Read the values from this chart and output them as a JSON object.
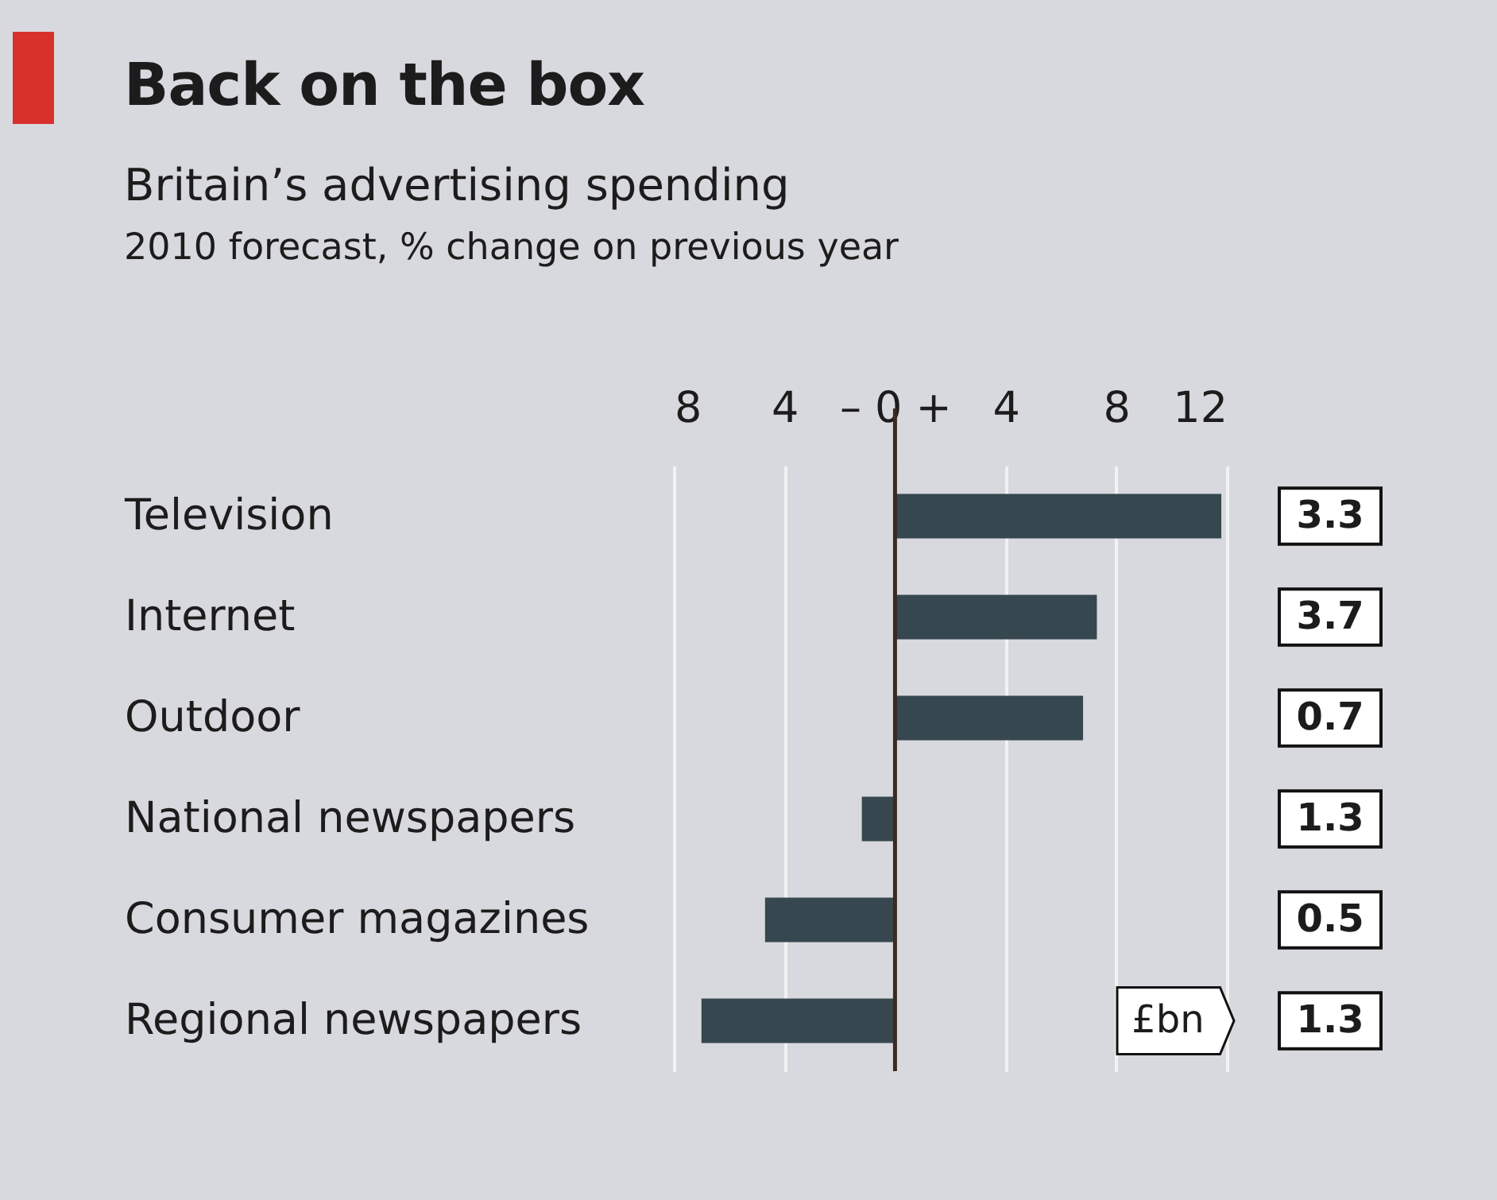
{
  "chart_data": {
    "type": "bar",
    "orientation": "horizontal",
    "title": "Back on the box",
    "subtitle": "Britain’s advertising spending",
    "xlabel": "2010 forecast, % change on previous year",
    "categories": [
      "Television",
      "Internet",
      "Outdoor",
      "National newspapers",
      "Consumer magazines",
      "Regional newspapers"
    ],
    "values": [
      11.8,
      7.3,
      6.8,
      -1.2,
      -4.7,
      -7.0
    ],
    "color": "#37474f",
    "xlim": [
      -8,
      12
    ],
    "xticks": [
      {
        "value": -8,
        "label": "8"
      },
      {
        "value": -4,
        "label": "4"
      },
      {
        "value": 0,
        "label": "– 0 +"
      },
      4,
      8,
      12
    ],
    "grid": "x",
    "ref_lines": [
      {
        "axis": "x",
        "value": 0,
        "color": "#3a2a22"
      }
    ],
    "annotations": [
      "3.3",
      "3.7",
      "0.7",
      "1.3",
      "0.5",
      "1.3",
      "£bn"
    ]
  }
}
